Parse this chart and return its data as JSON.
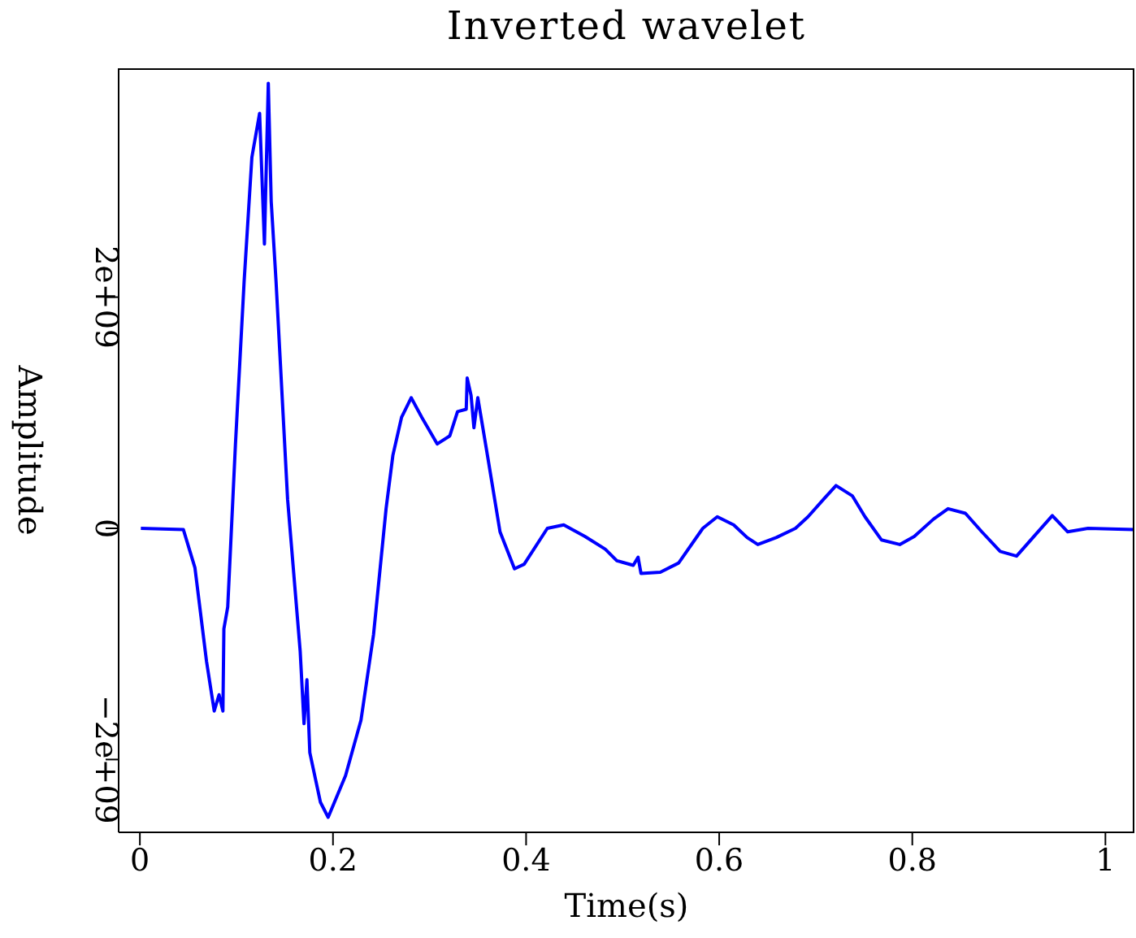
{
  "chart_data": {
    "type": "line",
    "title": "Inverted wavelet",
    "xlabel": "Time(s)",
    "ylabel": "Amplitude",
    "x": [
      0.001,
      0.045,
      0.057,
      0.069,
      0.077,
      0.082,
      0.086,
      0.087,
      0.091,
      0.099,
      0.108,
      0.116,
      0.124,
      0.129,
      0.133,
      0.136,
      0.141,
      0.153,
      0.166,
      0.17,
      0.173,
      0.176,
      0.187,
      0.195,
      0.213,
      0.229,
      0.242,
      0.255,
      0.262,
      0.271,
      0.281,
      0.292,
      0.308,
      0.321,
      0.329,
      0.338,
      0.339,
      0.343,
      0.346,
      0.35,
      0.36,
      0.373,
      0.388,
      0.398,
      0.422,
      0.439,
      0.461,
      0.482,
      0.494,
      0.511,
      0.516,
      0.519,
      0.539,
      0.558,
      0.583,
      0.598,
      0.615,
      0.629,
      0.64,
      0.659,
      0.679,
      0.692,
      0.708,
      0.721,
      0.738,
      0.751,
      0.768,
      0.787,
      0.802,
      0.822,
      0.837,
      0.855,
      0.872,
      0.891,
      0.908,
      0.926,
      0.945,
      0.961,
      0.982,
      1.029
    ],
    "series": [
      {
        "color": "#0000ff",
        "values": [
          0,
          -10000000.0,
          -340000000.0,
          -1150000000.0,
          -1580000000.0,
          -1440000000.0,
          -1580000000.0,
          -870000000.0,
          -680000000.0,
          730000000.0,
          2140000000.0,
          3210000000.0,
          3590000000.0,
          2460000000.0,
          3850000000.0,
          2830000000.0,
          2140000000.0,
          250000000.0,
          -1060000000.0,
          -1690000000.0,
          -1310000000.0,
          -1940000000.0,
          -2370000000.0,
          -2500000000.0,
          -2140000000.0,
          -1660000000.0,
          -920000000.0,
          170000000.0,
          630000000.0,
          960000000.0,
          1130000000.0,
          960000000.0,
          730000000.0,
          800000000.0,
          1010000000.0,
          1030000000.0,
          1300000000.0,
          1150000000.0,
          870000000.0,
          1130000000.0,
          630000000.0,
          -30000000.0,
          -350000000.0,
          -310000000.0,
          0,
          30000000.0,
          -70000000.0,
          -180000000.0,
          -280000000.0,
          -320000000.0,
          -250000000.0,
          -390000000.0,
          -380000000.0,
          -300000000.0,
          0,
          100000000.0,
          30000000.0,
          -80000000.0,
          -140000000.0,
          -80000000.0,
          0,
          100000000.0,
          250000000.0,
          370000000.0,
          280000000.0,
          100000000.0,
          -100000000.0,
          -140000000.0,
          -70000000.0,
          80000000.0,
          170000000.0,
          130000000.0,
          -30000000.0,
          -200000000.0,
          -240000000.0,
          -70000000.0,
          110000000.0,
          -30000000.0,
          0,
          -10000000.0
        ]
      }
    ],
    "xlim": [
      -0.022,
      1.03
    ],
    "xticks": [
      0,
      0.2,
      0.4,
      0.6,
      0.8,
      1
    ],
    "ylim": [
      -2630000000.0,
      3980000000.0
    ],
    "yticks": [
      {
        "value": -2000000000.0,
        "label": "−2e+09"
      },
      {
        "value": 0,
        "label": "0"
      },
      {
        "value": 2000000000.0,
        "label": "2e+09"
      }
    ],
    "marker": "none",
    "line_style": "solid"
  }
}
